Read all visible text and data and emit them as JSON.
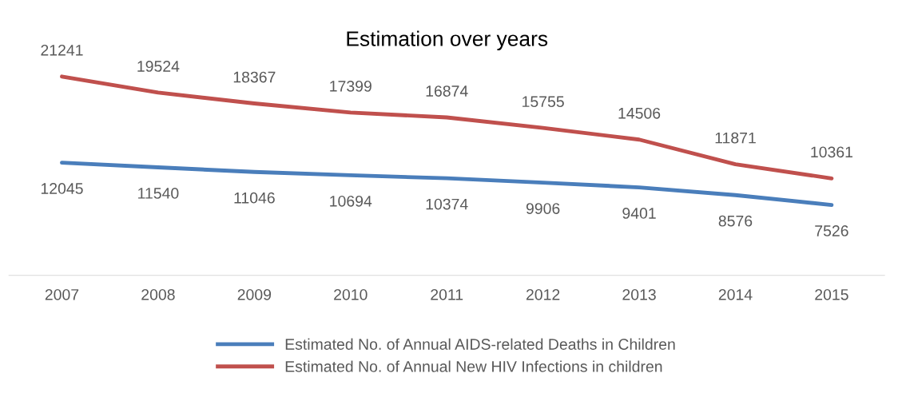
{
  "chart_data": {
    "type": "line",
    "title": "Estimation over years",
    "categories": [
      "2007",
      "2008",
      "2009",
      "2010",
      "2011",
      "2012",
      "2013",
      "2014",
      "2015"
    ],
    "series": [
      {
        "name": "Estimated No. of Annual AIDS-related Deaths in Children",
        "color": "#4a7ebb",
        "values": [
          12045,
          11540,
          11046,
          10694,
          10374,
          9906,
          9401,
          8576,
          7526
        ]
      },
      {
        "name": "Estimated No. of Annual New HIV Infections in children",
        "color": "#c0504d",
        "values": [
          21241,
          19524,
          18367,
          17399,
          16874,
          15755,
          14506,
          11871,
          10361
        ]
      }
    ],
    "data_labels": true,
    "legend": "bottom",
    "grid": false,
    "tick_labels": "x",
    "marker": "none",
    "line_style": "solid"
  }
}
